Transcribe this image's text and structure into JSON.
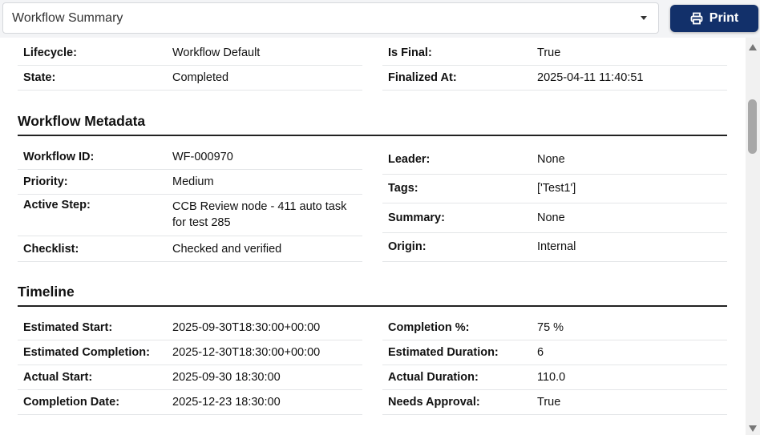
{
  "header": {
    "select_value": "Workflow Summary",
    "print_label": "Print"
  },
  "general": {
    "left": [
      {
        "label": "Lifecycle:",
        "value": "Workflow Default"
      },
      {
        "label": "State:",
        "value": "Completed"
      }
    ],
    "right": [
      {
        "label": "Is Final:",
        "value": "True"
      },
      {
        "label": "Finalized At:",
        "value": "2025-04-11 11:40:51"
      }
    ]
  },
  "metadata": {
    "title": "Workflow Metadata",
    "left": [
      {
        "label": "Workflow ID:",
        "value": "WF-000970"
      },
      {
        "label": "Priority:",
        "value": "Medium"
      },
      {
        "label": "Active Step:",
        "value": "CCB Review node - 411 auto task for test 285"
      },
      {
        "label": "Checklist:",
        "value": "Checked and verified"
      }
    ],
    "right": [
      {
        "label": "Leader:",
        "value": "None"
      },
      {
        "label": "Tags:",
        "value": "['Test1']"
      },
      {
        "label": "Summary:",
        "value": "None"
      },
      {
        "label": "Origin:",
        "value": "Internal"
      }
    ]
  },
  "timeline": {
    "title": "Timeline",
    "left": [
      {
        "label": "Estimated Start:",
        "value": "2025-09-30T18:30:00+00:00"
      },
      {
        "label": "Estimated Completion:",
        "value": "2025-12-30T18:30:00+00:00"
      },
      {
        "label": "Actual Start:",
        "value": "2025-09-30 18:30:00"
      },
      {
        "label": "Completion Date:",
        "value": "2025-12-23 18:30:00"
      }
    ],
    "right": [
      {
        "label": "Completion %:",
        "value": "75 %"
      },
      {
        "label": "Estimated Duration:",
        "value": "6"
      },
      {
        "label": "Actual Duration:",
        "value": "110.0"
      },
      {
        "label": "Needs Approval:",
        "value": "True"
      }
    ]
  }
}
